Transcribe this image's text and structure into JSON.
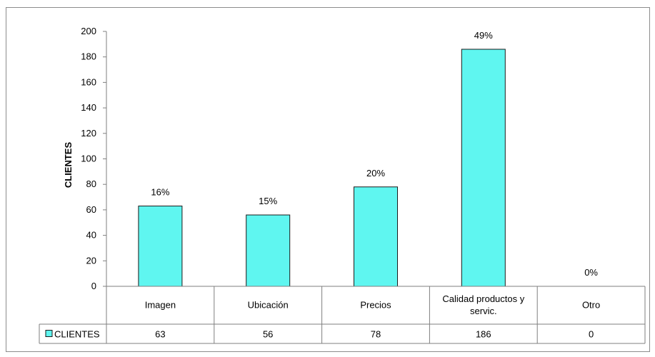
{
  "chart_data": {
    "type": "bar",
    "categories": [
      "Imagen",
      "Ubicación",
      "Precios",
      "Calidad productos y servic.",
      "Otro"
    ],
    "category_lines": [
      [
        "Imagen"
      ],
      [
        "Ubicación"
      ],
      [
        "Precios"
      ],
      [
        "Calidad productos y",
        "servic."
      ],
      [
        "Otro"
      ]
    ],
    "series": [
      {
        "name": "CLIENTES",
        "values": [
          63,
          56,
          78,
          186,
          0
        ],
        "color": "#5ff6f0",
        "labels": [
          "16%",
          "15%",
          "20%",
          "49%",
          "0%"
        ]
      }
    ],
    "ylabel": "CLIENTES",
    "ylim": [
      0,
      200
    ],
    "yticks": [
      0,
      20,
      40,
      60,
      80,
      100,
      120,
      140,
      160,
      180,
      200
    ],
    "grid": false,
    "data_table": true,
    "legend_key_in_table": true
  }
}
